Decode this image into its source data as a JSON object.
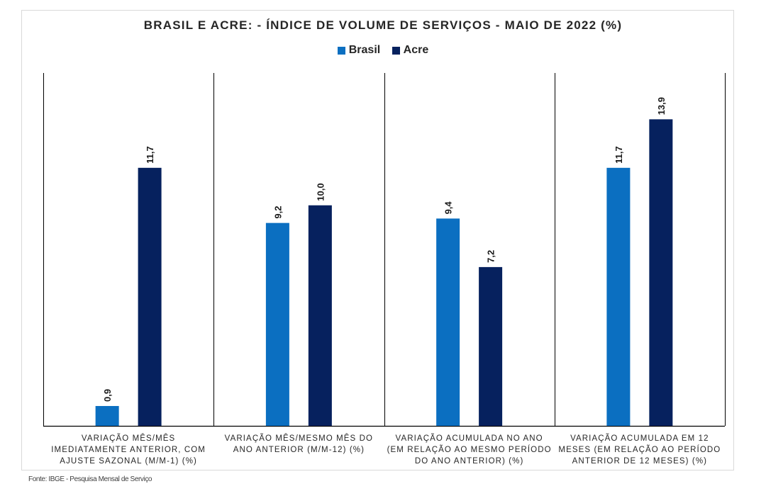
{
  "chart_data": {
    "type": "bar",
    "title": "BRASIL E ACRE: - ÍNDICE DE VOLUME DE SERVIÇOS - MAIO DE 2022 (%)",
    "categories": [
      [
        "VARIAÇÃO MÊS/MÊS",
        "IMEDIATAMENTE ANTERIOR, COM",
        "AJUSTE SAZONAL (M/M-1) (%)"
      ],
      [
        "VARIAÇÃO MÊS/MESMO MÊS DO",
        "ANO ANTERIOR (M/M-12) (%)"
      ],
      [
        "VARIAÇÃO ACUMULADA NO ANO",
        "(EM RELAÇÃO AO MESMO PERÍODO",
        "DO ANO ANTERIOR) (%)"
      ],
      [
        "VARIAÇÃO ACUMULADA EM 12",
        "MESES (EM RELAÇÃO AO PERÍODO",
        "ANTERIOR DE 12 MESES) (%)"
      ]
    ],
    "series": [
      {
        "name": "Brasil",
        "color": "#0b6fc1",
        "values": [
          0.9,
          9.2,
          9.4,
          11.7
        ],
        "labels": [
          "0,9",
          "9,2",
          "9,4",
          "11,7"
        ]
      },
      {
        "name": "Acre",
        "color": "#06215e",
        "values": [
          11.7,
          10.0,
          7.2,
          13.9
        ],
        "labels": [
          "11,7",
          "10,0",
          "7,2",
          "13,9"
        ]
      }
    ],
    "ylim": [
      0,
      16
    ],
    "xlabel": "",
    "ylabel": "",
    "legend": "top-center",
    "grid": false
  },
  "source": "Fonte: IBGE - Pesquisa Mensal de Serviço"
}
